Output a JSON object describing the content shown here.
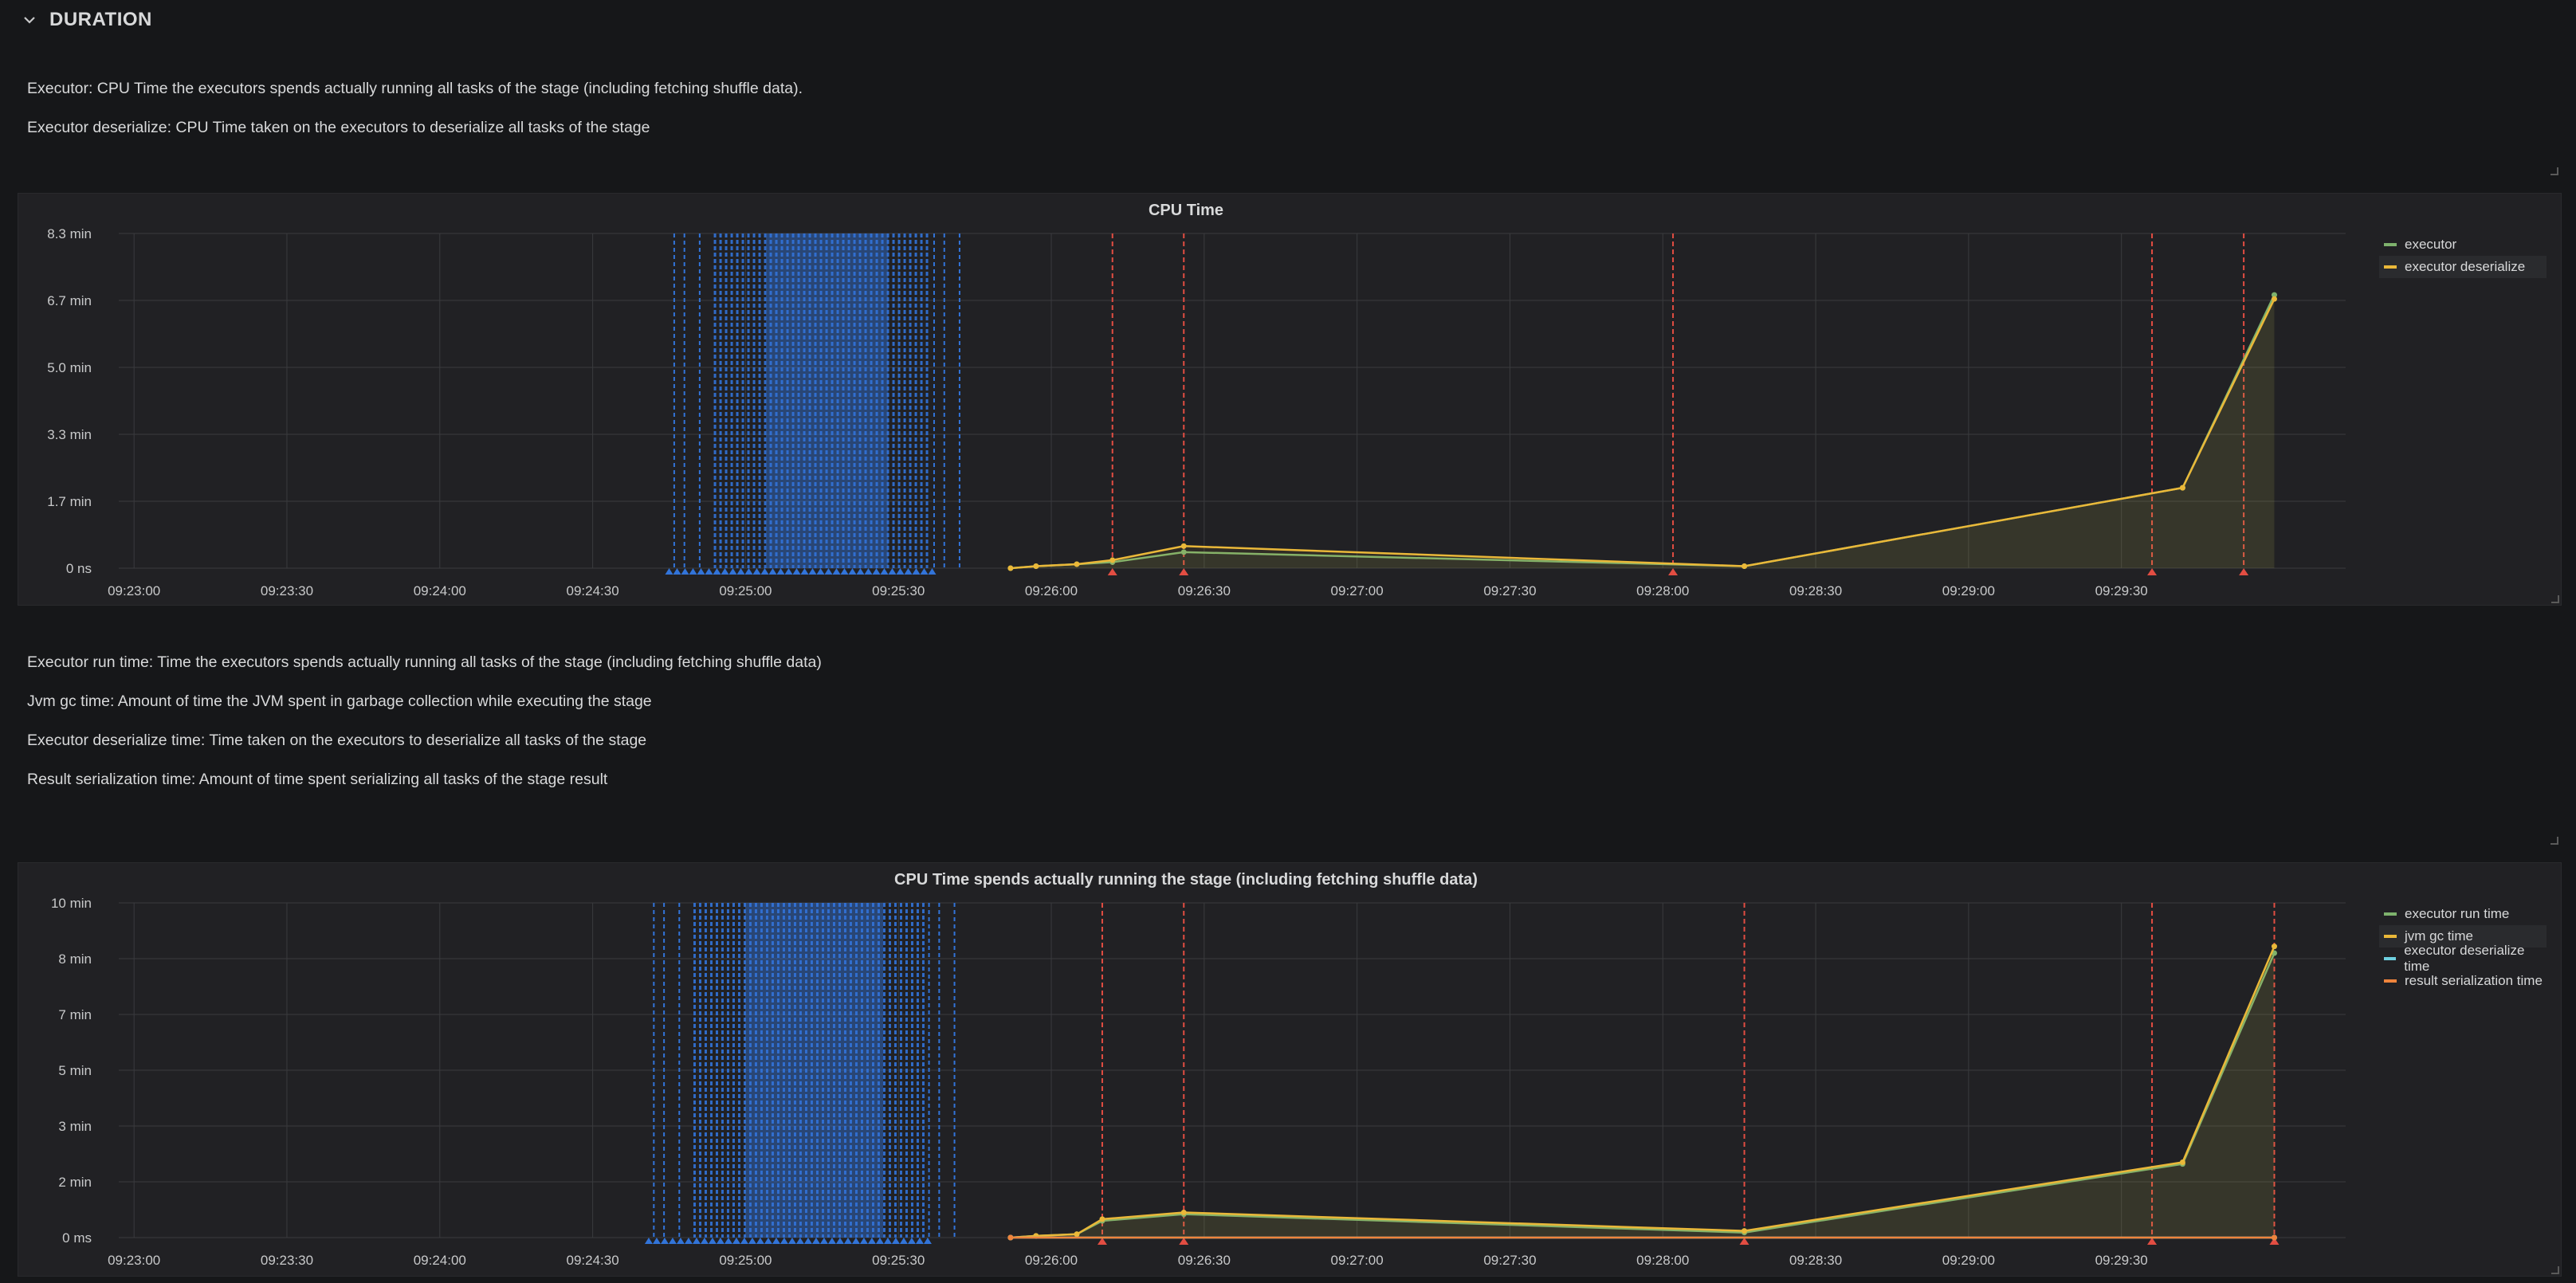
{
  "row": {
    "title": "DURATION",
    "collapse_icon": "chevron-down-icon"
  },
  "text_panel_1": {
    "lines": [
      "Executor: CPU Time the executors spends actually running all tasks of the stage (including fetching shuffle data).",
      "Executor deserialize: CPU Time taken on the executors to deserialize all tasks of the stage"
    ]
  },
  "text_panel_2": {
    "lines": [
      "Executor run time: Time the executors spends actually running all tasks of the stage (including fetching shuffle data)",
      "Jvm gc time: Amount of time the JVM spent in garbage collection while executing the stage",
      "Executor deserialize time: Time taken on the executors to deserialize all tasks of the stage",
      "Result serialization time: Amount of time spent serializing all tasks of the stage result"
    ]
  },
  "colors": {
    "green": "#7eb26d",
    "yellow": "#eab839",
    "blue": "#6ed0e0",
    "orange": "#ef843c",
    "annotation_blue": "#3274d9",
    "annotation_red": "#e24d42",
    "grid": "#3a3b3e",
    "tick": "#c8c9ca"
  },
  "chart_data": [
    {
      "type": "line",
      "title": "CPU Time",
      "y_unit": "min",
      "ylim": [
        0,
        8.33
      ],
      "y_ticks": [
        "0 ns",
        "1.7 min",
        "3.3 min",
        "5.0 min",
        "6.7 min",
        "8.3 min"
      ],
      "x_ticks": [
        "09:23:00",
        "09:23:30",
        "09:24:00",
        "09:24:30",
        "09:25:00",
        "09:25:30",
        "09:26:00",
        "09:26:30",
        "09:27:00",
        "09:27:30",
        "09:28:00",
        "09:28:30",
        "09:29:00",
        "09:29:30"
      ],
      "xlim_seconds": [
        -3,
        434
      ],
      "legend_position": "right",
      "series": [
        {
          "name": "executor",
          "color": "#7eb26d",
          "x": [
            172,
            177,
            185,
            192,
            206,
            316,
            402,
            420
          ],
          "y": [
            0.0,
            0.05,
            0.1,
            0.15,
            0.4,
            0.05,
            2.0,
            6.8
          ]
        },
        {
          "name": "executor deserialize",
          "color": "#eab839",
          "x": [
            172,
            177,
            185,
            192,
            206,
            316,
            402,
            420
          ],
          "y": [
            0.0,
            0.05,
            0.1,
            0.2,
            0.55,
            0.05,
            2.0,
            6.7
          ]
        }
      ],
      "annotations_red_seconds": [
        192,
        206,
        302,
        396,
        414
      ],
      "annotations_blue_range_seconds": [
        114,
        156
      ]
    },
    {
      "type": "line",
      "title": "CPU Time spends actually running the stage (including fetching shuffle data)",
      "y_unit": "min",
      "ylim": [
        0,
        10
      ],
      "y_ticks": [
        "0 ms",
        "2 min",
        "3 min",
        "5 min",
        "7 min",
        "8 min",
        "10 min"
      ],
      "x_ticks": [
        "09:23:00",
        "09:23:30",
        "09:24:00",
        "09:24:30",
        "09:25:00",
        "09:25:30",
        "09:26:00",
        "09:26:30",
        "09:27:00",
        "09:27:30",
        "09:28:00",
        "09:28:30",
        "09:29:00",
        "09:29:30"
      ],
      "xlim_seconds": [
        -3,
        434
      ],
      "legend_position": "right",
      "series": [
        {
          "name": "executor run time",
          "color": "#7eb26d",
          "x": [
            172,
            177,
            185,
            190,
            206,
            316,
            402,
            420
          ],
          "y": [
            0.0,
            0.05,
            0.1,
            0.5,
            0.7,
            0.15,
            2.2,
            8.5
          ]
        },
        {
          "name": "jvm gc time",
          "color": "#eab839",
          "x": [
            172,
            177,
            185,
            190,
            206,
            316,
            402,
            420
          ],
          "y": [
            0.0,
            0.05,
            0.1,
            0.55,
            0.75,
            0.2,
            2.25,
            8.7
          ]
        },
        {
          "name": "executor deserialize time",
          "color": "#6ed0e0",
          "x": [
            172,
            420
          ],
          "y": [
            0.0,
            0.0
          ]
        },
        {
          "name": "result serialization time",
          "color": "#ef843c",
          "x": [
            172,
            420
          ],
          "y": [
            0.0,
            0.0
          ]
        }
      ],
      "annotations_red_seconds": [
        190,
        206,
        316,
        396,
        420
      ],
      "annotations_blue_range_seconds": [
        110,
        155
      ]
    }
  ]
}
